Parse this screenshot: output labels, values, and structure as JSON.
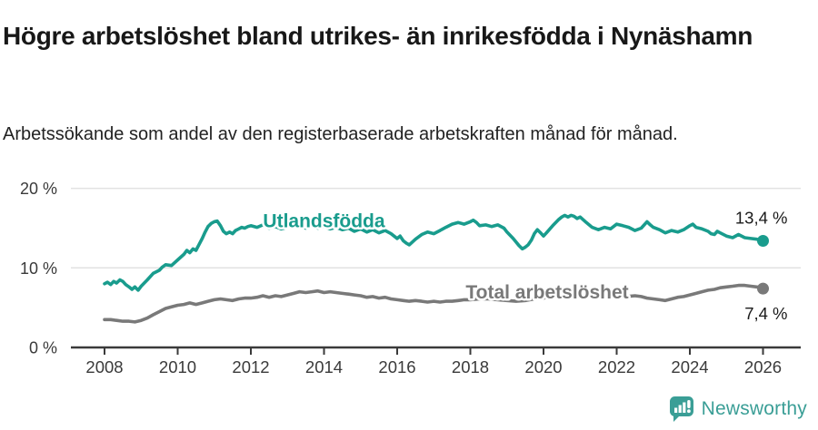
{
  "header": {
    "title": "Högre arbetslöshet bland utrikes- än inrikesfödda i Nynäshamn",
    "subtitle": "Arbetssökande som andel av den registerbaserade arbetskraften månad för månad."
  },
  "chart_data": {
    "type": "line",
    "title": "Högre arbetslöshet bland utrikes- än inrikesfödda i Nynäshamn",
    "subtitle": "Arbetssökande som andel av den registerbaserade arbetskraften månad för månad.",
    "xlabel": "",
    "ylabel": "",
    "xlim": [
      2007.6,
      2026.6
    ],
    "ylim": [
      0,
      20
    ],
    "grid": "horizontal",
    "legend_position": "inline-labels",
    "x_ticks": [
      "2008",
      "2010",
      "2012",
      "2014",
      "2016",
      "2018",
      "2020",
      "2022",
      "2024",
      "2026"
    ],
    "y_ticks": [
      {
        "label": "0 %",
        "value": 0
      },
      {
        "label": "10 %",
        "value": 10
      },
      {
        "label": "20 %",
        "value": 20
      }
    ],
    "series": [
      {
        "name": "Utlandsfödda",
        "color": "#199c8d",
        "end_value": 13.4,
        "end_label": "13,4 %",
        "value_label_side": "above",
        "label_pos": {
          "x": 2014.0,
          "y": 15.9
        },
        "points": [
          [
            2008.0,
            8.0
          ],
          [
            2008.08,
            8.2
          ],
          [
            2008.17,
            7.9
          ],
          [
            2008.25,
            8.3
          ],
          [
            2008.33,
            8.1
          ],
          [
            2008.42,
            8.5
          ],
          [
            2008.5,
            8.3
          ],
          [
            2008.58,
            7.9
          ],
          [
            2008.67,
            7.6
          ],
          [
            2008.75,
            7.3
          ],
          [
            2008.83,
            7.6
          ],
          [
            2008.92,
            7.2
          ],
          [
            2009.0,
            7.7
          ],
          [
            2009.17,
            8.5
          ],
          [
            2009.33,
            9.3
          ],
          [
            2009.5,
            9.7
          ],
          [
            2009.58,
            10.1
          ],
          [
            2009.67,
            10.4
          ],
          [
            2009.83,
            10.3
          ],
          [
            2010.0,
            11.0
          ],
          [
            2010.17,
            11.7
          ],
          [
            2010.25,
            12.2
          ],
          [
            2010.33,
            11.9
          ],
          [
            2010.42,
            12.4
          ],
          [
            2010.5,
            12.2
          ],
          [
            2010.58,
            12.9
          ],
          [
            2010.67,
            13.7
          ],
          [
            2010.75,
            14.5
          ],
          [
            2010.83,
            15.2
          ],
          [
            2010.92,
            15.6
          ],
          [
            2011.0,
            15.8
          ],
          [
            2011.08,
            15.9
          ],
          [
            2011.17,
            15.3
          ],
          [
            2011.25,
            14.6
          ],
          [
            2011.33,
            14.3
          ],
          [
            2011.42,
            14.5
          ],
          [
            2011.5,
            14.3
          ],
          [
            2011.58,
            14.7
          ],
          [
            2011.67,
            14.9
          ],
          [
            2011.75,
            15.1
          ],
          [
            2011.83,
            15.0
          ],
          [
            2011.92,
            15.2
          ],
          [
            2012.0,
            15.3
          ],
          [
            2012.17,
            15.1
          ],
          [
            2012.33,
            15.4
          ],
          [
            2012.5,
            15.0
          ],
          [
            2012.67,
            15.2
          ],
          [
            2012.83,
            14.9
          ],
          [
            2013.0,
            15.1
          ],
          [
            2013.17,
            15.4
          ],
          [
            2013.33,
            15.2
          ],
          [
            2013.5,
            15.0
          ],
          [
            2013.67,
            15.3
          ],
          [
            2013.83,
            15.0
          ],
          [
            2014.0,
            15.2
          ],
          [
            2014.17,
            14.9
          ],
          [
            2014.33,
            15.1
          ],
          [
            2014.5,
            14.8
          ],
          [
            2014.67,
            15.0
          ],
          [
            2014.83,
            14.6
          ],
          [
            2015.0,
            14.9
          ],
          [
            2015.17,
            14.5
          ],
          [
            2015.33,
            14.8
          ],
          [
            2015.5,
            14.4
          ],
          [
            2015.67,
            14.7
          ],
          [
            2015.83,
            14.3
          ],
          [
            2016.0,
            13.7
          ],
          [
            2016.08,
            14.0
          ],
          [
            2016.17,
            13.4
          ],
          [
            2016.25,
            13.1
          ],
          [
            2016.33,
            12.9
          ],
          [
            2016.5,
            13.6
          ],
          [
            2016.67,
            14.2
          ],
          [
            2016.83,
            14.5
          ],
          [
            2017.0,
            14.3
          ],
          [
            2017.17,
            14.7
          ],
          [
            2017.33,
            15.1
          ],
          [
            2017.5,
            15.5
          ],
          [
            2017.67,
            15.7
          ],
          [
            2017.83,
            15.5
          ],
          [
            2018.0,
            15.8
          ],
          [
            2018.08,
            16.0
          ],
          [
            2018.17,
            15.7
          ],
          [
            2018.25,
            15.3
          ],
          [
            2018.42,
            15.4
          ],
          [
            2018.58,
            15.2
          ],
          [
            2018.75,
            15.4
          ],
          [
            2018.92,
            15.0
          ],
          [
            2019.0,
            14.5
          ],
          [
            2019.17,
            13.7
          ],
          [
            2019.33,
            12.8
          ],
          [
            2019.42,
            12.4
          ],
          [
            2019.5,
            12.6
          ],
          [
            2019.58,
            12.9
          ],
          [
            2019.67,
            13.5
          ],
          [
            2019.75,
            14.3
          ],
          [
            2019.83,
            14.8
          ],
          [
            2019.92,
            14.4
          ],
          [
            2020.0,
            14.0
          ],
          [
            2020.08,
            14.4
          ],
          [
            2020.25,
            15.3
          ],
          [
            2020.42,
            16.1
          ],
          [
            2020.5,
            16.4
          ],
          [
            2020.58,
            16.6
          ],
          [
            2020.67,
            16.4
          ],
          [
            2020.75,
            16.6
          ],
          [
            2020.83,
            16.5
          ],
          [
            2020.92,
            16.2
          ],
          [
            2021.0,
            16.4
          ],
          [
            2021.17,
            15.7
          ],
          [
            2021.33,
            15.1
          ],
          [
            2021.5,
            14.8
          ],
          [
            2021.67,
            15.1
          ],
          [
            2021.83,
            14.9
          ],
          [
            2022.0,
            15.5
          ],
          [
            2022.17,
            15.3
          ],
          [
            2022.33,
            15.1
          ],
          [
            2022.5,
            14.7
          ],
          [
            2022.67,
            15.0
          ],
          [
            2022.83,
            15.8
          ],
          [
            2022.92,
            15.4
          ],
          [
            2023.0,
            15.1
          ],
          [
            2023.17,
            14.8
          ],
          [
            2023.33,
            14.4
          ],
          [
            2023.5,
            14.7
          ],
          [
            2023.67,
            14.5
          ],
          [
            2023.83,
            14.8
          ],
          [
            2024.0,
            15.3
          ],
          [
            2024.08,
            15.5
          ],
          [
            2024.17,
            15.1
          ],
          [
            2024.33,
            14.9
          ],
          [
            2024.5,
            14.6
          ],
          [
            2024.58,
            14.3
          ],
          [
            2024.67,
            14.2
          ],
          [
            2024.75,
            14.6
          ],
          [
            2024.83,
            14.4
          ],
          [
            2025.0,
            14.0
          ],
          [
            2025.17,
            13.8
          ],
          [
            2025.33,
            14.2
          ],
          [
            2025.5,
            13.8
          ],
          [
            2025.67,
            13.7
          ],
          [
            2025.83,
            13.6
          ],
          [
            2026.0,
            13.4
          ]
        ]
      },
      {
        "name": "Total arbetslöshet",
        "color": "#797979",
        "end_value": 7.4,
        "end_label": "7,4 %",
        "value_label_side": "below",
        "label_pos": {
          "x": 2020.1,
          "y": 6.95
        },
        "points": [
          [
            2008.0,
            3.5
          ],
          [
            2008.17,
            3.5
          ],
          [
            2008.33,
            3.4
          ],
          [
            2008.5,
            3.3
          ],
          [
            2008.67,
            3.3
          ],
          [
            2008.83,
            3.2
          ],
          [
            2009.0,
            3.4
          ],
          [
            2009.17,
            3.7
          ],
          [
            2009.33,
            4.1
          ],
          [
            2009.5,
            4.5
          ],
          [
            2009.67,
            4.9
          ],
          [
            2009.83,
            5.1
          ],
          [
            2010.0,
            5.3
          ],
          [
            2010.17,
            5.4
          ],
          [
            2010.33,
            5.6
          ],
          [
            2010.5,
            5.4
          ],
          [
            2010.67,
            5.6
          ],
          [
            2010.83,
            5.8
          ],
          [
            2011.0,
            6.0
          ],
          [
            2011.17,
            6.1
          ],
          [
            2011.33,
            6.0
          ],
          [
            2011.5,
            5.9
          ],
          [
            2011.67,
            6.1
          ],
          [
            2011.83,
            6.2
          ],
          [
            2012.0,
            6.2
          ],
          [
            2012.17,
            6.3
          ],
          [
            2012.33,
            6.5
          ],
          [
            2012.5,
            6.3
          ],
          [
            2012.67,
            6.5
          ],
          [
            2012.83,
            6.4
          ],
          [
            2013.0,
            6.6
          ],
          [
            2013.17,
            6.8
          ],
          [
            2013.33,
            7.0
          ],
          [
            2013.5,
            6.9
          ],
          [
            2013.67,
            7.0
          ],
          [
            2013.83,
            7.1
          ],
          [
            2014.0,
            6.9
          ],
          [
            2014.17,
            7.0
          ],
          [
            2014.33,
            6.9
          ],
          [
            2014.5,
            6.8
          ],
          [
            2014.67,
            6.7
          ],
          [
            2014.83,
            6.6
          ],
          [
            2015.0,
            6.5
          ],
          [
            2015.17,
            6.3
          ],
          [
            2015.33,
            6.4
          ],
          [
            2015.5,
            6.2
          ],
          [
            2015.67,
            6.3
          ],
          [
            2015.83,
            6.1
          ],
          [
            2016.0,
            6.0
          ],
          [
            2016.17,
            5.9
          ],
          [
            2016.33,
            5.8
          ],
          [
            2016.5,
            5.9
          ],
          [
            2016.67,
            5.8
          ],
          [
            2016.83,
            5.7
          ],
          [
            2017.0,
            5.8
          ],
          [
            2017.17,
            5.7
          ],
          [
            2017.33,
            5.8
          ],
          [
            2017.5,
            5.8
          ],
          [
            2017.67,
            5.9
          ],
          [
            2017.83,
            6.0
          ],
          [
            2018.0,
            6.0
          ],
          [
            2018.25,
            6.1
          ],
          [
            2018.5,
            6.1
          ],
          [
            2018.75,
            6.0
          ],
          [
            2019.0,
            5.9
          ],
          [
            2019.25,
            5.8
          ],
          [
            2019.5,
            5.9
          ],
          [
            2019.75,
            6.1
          ],
          [
            2020.0,
            6.2
          ],
          [
            2020.25,
            6.5
          ],
          [
            2020.5,
            6.8
          ],
          [
            2020.75,
            6.7
          ],
          [
            2021.0,
            6.6
          ],
          [
            2021.25,
            6.5
          ],
          [
            2021.5,
            6.4
          ],
          [
            2021.75,
            6.3
          ],
          [
            2022.0,
            6.3
          ],
          [
            2022.25,
            6.4
          ],
          [
            2022.5,
            6.5
          ],
          [
            2022.67,
            6.4
          ],
          [
            2022.83,
            6.2
          ],
          [
            2023.0,
            6.1
          ],
          [
            2023.17,
            6.0
          ],
          [
            2023.33,
            5.9
          ],
          [
            2023.5,
            6.1
          ],
          [
            2023.67,
            6.3
          ],
          [
            2023.83,
            6.4
          ],
          [
            2024.0,
            6.6
          ],
          [
            2024.17,
            6.8
          ],
          [
            2024.33,
            7.0
          ],
          [
            2024.5,
            7.2
          ],
          [
            2024.67,
            7.3
          ],
          [
            2024.83,
            7.5
          ],
          [
            2025.0,
            7.6
          ],
          [
            2025.17,
            7.7
          ],
          [
            2025.33,
            7.8
          ],
          [
            2025.5,
            7.8
          ],
          [
            2025.67,
            7.7
          ],
          [
            2025.83,
            7.6
          ],
          [
            2026.0,
            7.4
          ]
        ]
      }
    ],
    "colors": {
      "gridline": "#e2e2e2",
      "axis": "#3a3a3a",
      "tick_label": "#3a3a3a",
      "end_label_text": "#1a1a1a"
    }
  },
  "footer": {
    "brand": "Newsworthy",
    "brand_color": "#3a9e96",
    "brand_icon": "newsworthy-chart-bubble"
  }
}
